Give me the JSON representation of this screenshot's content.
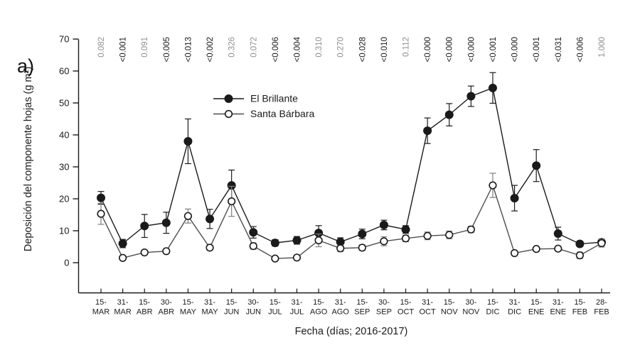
{
  "panel_label": "a)",
  "chart_data": {
    "type": "line",
    "title": "",
    "xlabel": "Fecha (días; 2016-2017)",
    "ylabel": "Deposición del componente hojas (g m²)",
    "ylim": [
      0,
      70
    ],
    "yticks": [
      0,
      10,
      20,
      30,
      40,
      50,
      60,
      70
    ],
    "grid": false,
    "legend_position": "inside-top-center",
    "categories": [
      "15-MAR",
      "31-MAR",
      "15-ABR",
      "30-ABR",
      "15-MAY",
      "31-MAY",
      "15-JUN",
      "30-JUN",
      "15-JUL",
      "31-JUL",
      "15-AGO",
      "31-AGO",
      "15-SEP",
      "30-SEP",
      "15-OCT",
      "31-OCT",
      "15-NOV",
      "30-NOV",
      "15-DIC",
      "31-DIC",
      "15-ENE",
      "31-ENE",
      "15-FEB",
      "28-FEB"
    ],
    "p_values_top": [
      "0.082",
      "<0.001",
      "0.091",
      "<0.005",
      "<0.013",
      "<0.002",
      "0.326",
      "0.072",
      "<0.006",
      "<0.004",
      "0.310",
      "0.270",
      "<0.028",
      "<0.010",
      "0.112",
      "<0.000",
      "<0.000",
      "<0.000",
      "<0.001",
      "<0.000",
      "<0.001",
      "<0.031",
      "<0.006",
      "1.000"
    ],
    "p_value_style": {
      "significant_color": "#1a1a1a",
      "non_significant_color": "#8f8f8f"
    },
    "series": [
      {
        "name": "El Brillante",
        "marker": "filled-circle",
        "line_color": "#1a1a1a",
        "marker_fill": "#1a1a1a",
        "marker_stroke": "#1a1a1a",
        "error_color": "#1a1a1a",
        "values": [
          20.3,
          6.0,
          11.5,
          12.5,
          38.0,
          13.7,
          24.2,
          9.5,
          6.2,
          7.0,
          9.3,
          6.5,
          9.0,
          11.8,
          10.4,
          41.3,
          46.3,
          52.1,
          54.7,
          20.2,
          30.4,
          9.1,
          5.9,
          6.4
        ],
        "errors": [
          2.0,
          1.3,
          3.6,
          3.3,
          7.0,
          3.0,
          4.8,
          1.8,
          1.0,
          1.2,
          2.3,
          1.3,
          1.5,
          1.5,
          1.2,
          4.0,
          3.5,
          3.2,
          4.8,
          4.0,
          5.0,
          2.0,
          0.9,
          1.0
        ]
      },
      {
        "name": "Santa Bárbara",
        "marker": "open-circle",
        "line_color": "#4d4d4d",
        "marker_fill": "#ffffff",
        "marker_stroke": "#1a1a1a",
        "error_color": "#7f7f7f",
        "values": [
          15.3,
          1.5,
          3.2,
          3.6,
          14.6,
          4.7,
          19.2,
          5.2,
          1.3,
          1.6,
          7.0,
          4.5,
          4.7,
          6.7,
          7.6,
          8.4,
          8.7,
          10.4,
          24.2,
          3.0,
          4.3,
          4.4,
          2.3,
          6.1
        ],
        "errors": [
          3.3,
          0.5,
          0.6,
          0.6,
          2.2,
          0.8,
          4.7,
          1.0,
          0.4,
          0.5,
          2.0,
          1.0,
          0.9,
          1.4,
          1.0,
          1.2,
          1.2,
          1.0,
          3.8,
          0.6,
          0.6,
          0.7,
          1.0,
          1.2
        ]
      }
    ]
  }
}
